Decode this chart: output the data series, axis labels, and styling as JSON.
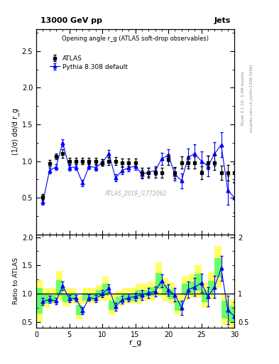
{
  "title_left": "13000 GeV pp",
  "title_right": "Jets",
  "plot_title": "Opening angle r_g (ATLAS soft-drop observables)",
  "ylabel_main": "(1/σ) dσ/d r_g",
  "ylabel_ratio": "Ratio to ATLAS",
  "xlabel": "r_g",
  "watermark": "ATLAS_2019_I1772062",
  "right_label_top": "Rivet 3.1.10, 3.4M events",
  "right_label_bot": "mcplots.cern.ch [arXiv:1306.3436]",
  "atlas_x": [
    1,
    2,
    3,
    4,
    5,
    6,
    7,
    8,
    9,
    10,
    11,
    12,
    13,
    14,
    15,
    16,
    17,
    18,
    19,
    20,
    21,
    22,
    23,
    24,
    25,
    26,
    27,
    28,
    29,
    30
  ],
  "atlas_y": [
    0.51,
    0.97,
    1.06,
    1.1,
    1.0,
    1.0,
    1.0,
    1.0,
    1.0,
    0.98,
    1.0,
    1.0,
    0.98,
    0.98,
    0.98,
    0.84,
    0.84,
    0.84,
    0.84,
    1.02,
    0.84,
    0.98,
    0.98,
    0.98,
    0.84,
    0.98,
    0.98,
    0.84,
    0.84,
    0.84
  ],
  "atlas_yerr": [
    0.04,
    0.04,
    0.04,
    0.06,
    0.04,
    0.04,
    0.04,
    0.04,
    0.04,
    0.04,
    0.05,
    0.05,
    0.05,
    0.05,
    0.05,
    0.07,
    0.07,
    0.07,
    0.07,
    0.07,
    0.08,
    0.08,
    0.08,
    0.08,
    0.09,
    0.09,
    0.1,
    0.1,
    0.11,
    0.13
  ],
  "pythia_x": [
    1,
    2,
    3,
    4,
    5,
    6,
    7,
    8,
    9,
    10,
    11,
    12,
    13,
    14,
    15,
    16,
    17,
    18,
    19,
    20,
    21,
    22,
    23,
    24,
    25,
    26,
    27,
    28,
    29,
    30
  ],
  "pythia_y": [
    0.44,
    0.87,
    0.92,
    1.25,
    0.91,
    0.92,
    0.7,
    0.93,
    0.91,
    0.98,
    1.1,
    0.77,
    0.87,
    0.91,
    0.93,
    0.82,
    0.85,
    0.87,
    1.03,
    1.08,
    0.82,
    0.73,
    1.05,
    1.1,
    1.0,
    0.93,
    1.1,
    1.22,
    0.6,
    0.5
  ],
  "pythia_yerr": [
    0.04,
    0.04,
    0.04,
    0.05,
    0.04,
    0.04,
    0.04,
    0.04,
    0.04,
    0.04,
    0.05,
    0.05,
    0.05,
    0.05,
    0.05,
    0.06,
    0.06,
    0.06,
    0.08,
    0.08,
    0.09,
    0.1,
    0.12,
    0.13,
    0.13,
    0.14,
    0.16,
    0.17,
    0.2,
    0.2
  ],
  "ratio_pythia_x": [
    1,
    2,
    3,
    4,
    5,
    6,
    7,
    8,
    9,
    10,
    11,
    12,
    13,
    14,
    15,
    16,
    17,
    18,
    19,
    20,
    21,
    22,
    23,
    24,
    25,
    26,
    27,
    28,
    29,
    30
  ],
  "ratio_pythia_y": [
    0.86,
    0.9,
    0.87,
    1.14,
    0.91,
    0.92,
    0.7,
    0.93,
    0.91,
    1.0,
    1.1,
    0.77,
    0.89,
    0.93,
    0.95,
    0.98,
    1.01,
    1.04,
    1.23,
    1.06,
    0.98,
    0.75,
    1.07,
    1.12,
    1.19,
    0.95,
    1.12,
    1.45,
    0.71,
    0.6
  ],
  "ratio_pythia_yerr": [
    0.06,
    0.06,
    0.06,
    0.07,
    0.06,
    0.06,
    0.06,
    0.06,
    0.06,
    0.06,
    0.07,
    0.07,
    0.07,
    0.07,
    0.07,
    0.09,
    0.09,
    0.09,
    0.11,
    0.1,
    0.12,
    0.13,
    0.15,
    0.16,
    0.16,
    0.17,
    0.19,
    0.22,
    0.25,
    0.25
  ],
  "band_x_edges": [
    0,
    1,
    2,
    3,
    4,
    5,
    6,
    7,
    8,
    9,
    10,
    11,
    12,
    13,
    14,
    15,
    16,
    17,
    18,
    19,
    20,
    21,
    22,
    23,
    24,
    25,
    26,
    27,
    28,
    29,
    30
  ],
  "band_yellow_lo": [
    0.5,
    0.75,
    0.82,
    0.88,
    0.78,
    0.82,
    0.55,
    0.82,
    0.82,
    0.88,
    0.88,
    0.62,
    0.78,
    0.82,
    0.82,
    0.82,
    0.88,
    0.88,
    0.95,
    0.88,
    0.82,
    0.62,
    0.88,
    0.92,
    0.92,
    0.75,
    0.9,
    1.1,
    0.45,
    0.4
  ],
  "band_yellow_hi": [
    1.25,
    1.1,
    1.1,
    1.4,
    1.1,
    1.1,
    0.95,
    1.1,
    1.1,
    1.15,
    1.3,
    1.0,
    1.05,
    1.1,
    1.1,
    1.18,
    1.18,
    1.22,
    1.55,
    1.28,
    1.2,
    1.0,
    1.3,
    1.35,
    1.5,
    1.2,
    1.38,
    1.85,
    1.0,
    0.9
  ],
  "band_green_lo": [
    0.65,
    0.83,
    0.84,
    0.96,
    0.85,
    0.87,
    0.63,
    0.87,
    0.87,
    0.94,
    0.96,
    0.71,
    0.84,
    0.88,
    0.88,
    0.9,
    0.95,
    0.96,
    1.09,
    0.98,
    0.9,
    0.7,
    0.97,
    1.02,
    1.05,
    0.85,
    1.01,
    1.29,
    0.56,
    0.5
  ],
  "band_green_hi": [
    1.1,
    1.0,
    0.98,
    1.24,
    0.99,
    0.99,
    0.8,
    0.99,
    0.99,
    1.06,
    1.18,
    0.88,
    0.95,
    0.99,
    0.99,
    1.07,
    1.07,
    1.12,
    1.37,
    1.15,
    1.08,
    0.88,
    1.18,
    1.22,
    1.35,
    1.07,
    1.23,
    1.63,
    0.88,
    0.78
  ],
  "ylim_main": [
    0.0,
    2.8
  ],
  "ylim_ratio": [
    0.4,
    2.05
  ],
  "xlim": [
    0,
    30
  ],
  "yticks_main": [
    0.5,
    1.0,
    1.5,
    2.0,
    2.5
  ],
  "yticks_ratio": [
    0.5,
    1.0,
    1.5,
    2.0
  ],
  "xticks": [
    0,
    5,
    10,
    15,
    20,
    25,
    30
  ],
  "atlas_color": "black",
  "pythia_color": "blue",
  "band_yellow_color": "#ffff66",
  "band_green_color": "#66ff66"
}
